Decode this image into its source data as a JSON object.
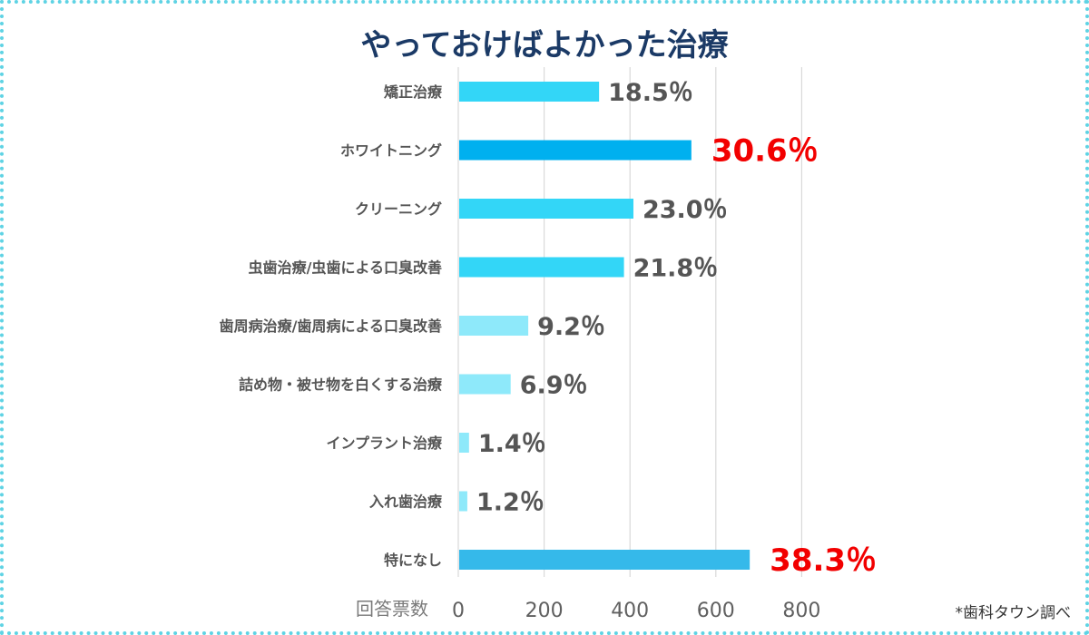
{
  "chart_data": {
    "type": "bar",
    "orientation": "horizontal",
    "title": "やっておけばよかった治療",
    "xlabel": "回答票数",
    "xlim": [
      0,
      860
    ],
    "xticks": [
      0,
      200,
      400,
      600,
      800
    ],
    "grid": true,
    "categories": [
      "矯正治療",
      "ホワイトニング",
      "クリーニング",
      "虫歯治療/虫歯による口臭改善",
      "歯周病治療/歯周病による口臭改善",
      "詰め物・被せ物を白くする治療",
      "インプラント治療",
      "入れ歯治療",
      "特になし"
    ],
    "values": [
      328,
      543,
      408,
      386,
      163,
      122,
      25,
      21,
      679
    ],
    "data_labels": [
      "18.5％",
      "30.6％",
      "23.0％",
      "21.8％",
      "9.2％",
      "6.9％",
      "1.4％",
      "1.2％",
      "38.3％"
    ],
    "bar_colors": [
      "#33d6f7",
      "#00b0ef",
      "#33d6f7",
      "#33d6f7",
      "#8ee9fa",
      "#8ee9fa",
      "#8ee9fa",
      "#8ee9fa",
      "#35b9ea"
    ],
    "highlight_labels": [
      false,
      true,
      false,
      false,
      false,
      false,
      false,
      false,
      true
    ],
    "label_color": "#555555",
    "highlight_color": "#f20000"
  },
  "source_note": "*歯科タウン調べ",
  "border_color": "#5fd3e4"
}
